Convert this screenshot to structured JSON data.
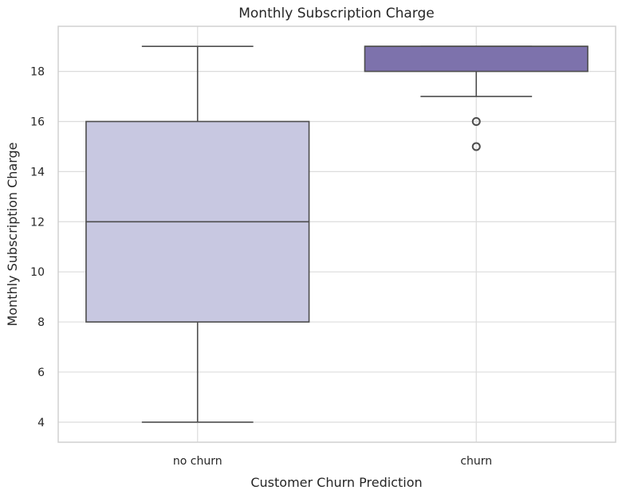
{
  "chart_data": {
    "type": "box",
    "title": "Monthly Subscription Charge",
    "xlabel": "Customer Churn Prediction",
    "ylabel": "Monthly Subscription Charge",
    "ylim": [
      3.2,
      19.8
    ],
    "yticks": [
      4,
      6,
      8,
      10,
      12,
      14,
      16,
      18
    ],
    "grid": true,
    "categories": [
      "no churn",
      "churn"
    ],
    "boxes": [
      {
        "category": "no churn",
        "whisker_low": 4,
        "q1": 8,
        "median": 12,
        "q3": 16,
        "whisker_high": 19,
        "outliers": [],
        "color": "#c8c8e1"
      },
      {
        "category": "churn",
        "whisker_low": 17,
        "q1": 18,
        "median": 19,
        "q3": 19,
        "whisker_high": 19,
        "outliers": [
          16,
          15
        ],
        "color": "#7d72ac"
      }
    ]
  }
}
